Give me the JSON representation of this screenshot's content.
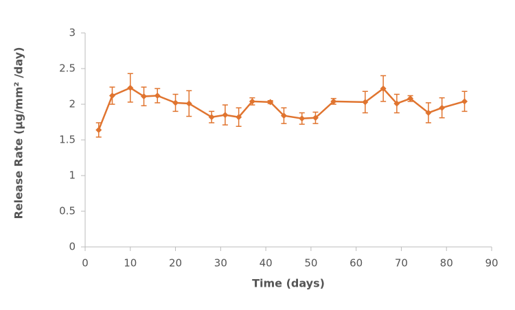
{
  "chart_data": {
    "type": "line",
    "x_label": "Time (days)",
    "y_label": "Release Rate (µg/mm² /day)",
    "series": [
      {
        "color": "#e0742f",
        "x": [
          3,
          6,
          10,
          13,
          16,
          20,
          23,
          28,
          31,
          34,
          37,
          41,
          44,
          48,
          51,
          55,
          62,
          66,
          69,
          72,
          76,
          79,
          84
        ],
        "values": [
          1.64,
          2.12,
          2.23,
          2.11,
          2.12,
          2.02,
          2.01,
          1.82,
          1.85,
          1.82,
          2.04,
          2.03,
          1.84,
          1.8,
          1.81,
          2.04,
          2.03,
          2.22,
          2.01,
          2.08,
          1.88,
          1.95,
          2.04
        ],
        "errors": [
          0.1,
          0.12,
          0.2,
          0.13,
          0.1,
          0.12,
          0.18,
          0.08,
          0.14,
          0.13,
          0.05,
          0.02,
          0.11,
          0.08,
          0.08,
          0.04,
          0.15,
          0.18,
          0.13,
          0.04,
          0.14,
          0.14,
          0.14
        ]
      }
    ],
    "xlim": [
      0,
      90
    ],
    "xticks": [
      0,
      10,
      20,
      30,
      40,
      50,
      60,
      70,
      80,
      90
    ],
    "ylim": [
      0,
      3
    ],
    "yticks": [
      0,
      0.5,
      1,
      1.5,
      2,
      2.5,
      3
    ],
    "grid": false
  }
}
